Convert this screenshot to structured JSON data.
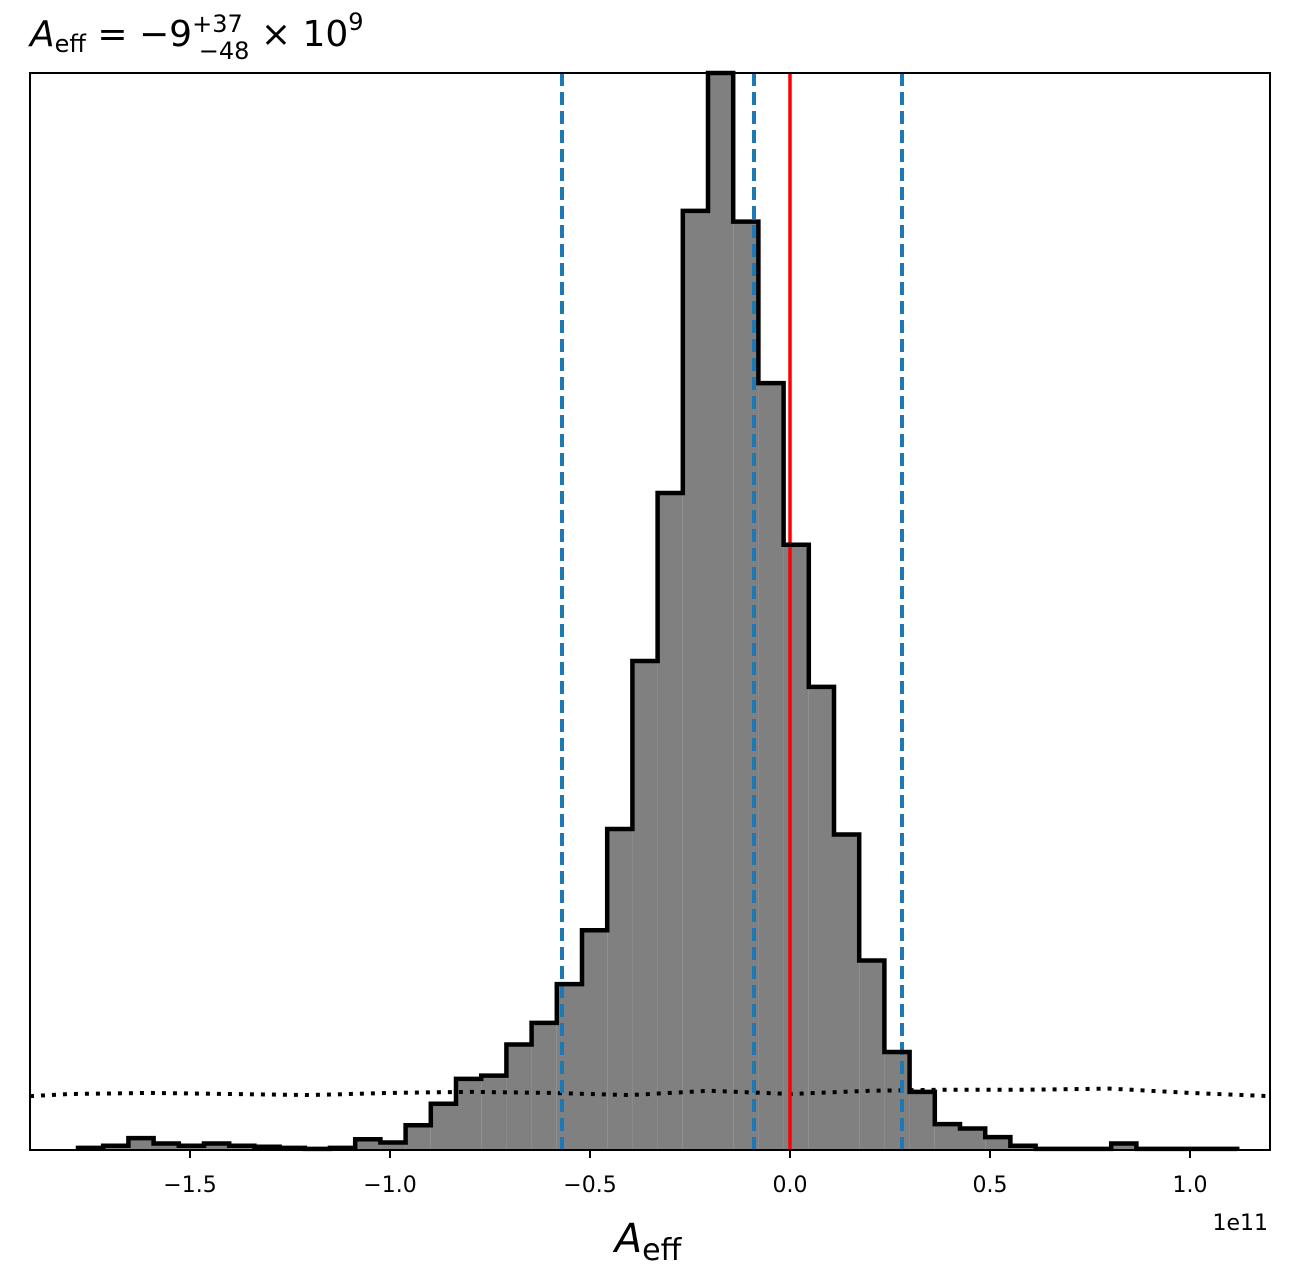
{
  "chart_data": {
    "type": "bar",
    "subtype": "histogram",
    "title": {
      "var_main": "A",
      "var_sub": "eff",
      "equals": " = −9",
      "sup": "+37",
      "sub": "−48",
      "times": " × 10",
      "exp": "9"
    },
    "xlabel": {
      "main": "A",
      "sub": "eff"
    },
    "x_offset_label": "1e11",
    "xlim": [
      -1.9,
      1.2
    ],
    "ylim": [
      0,
      1.0
    ],
    "ytick_labels_shown": false,
    "x_ticks": [
      {
        "value": -1.5,
        "label": "−1.5"
      },
      {
        "value": -1.0,
        "label": "−1.0"
      },
      {
        "value": -0.5,
        "label": "−0.5"
      },
      {
        "value": 0.0,
        "label": "0.0"
      },
      {
        "value": 0.5,
        "label": "0.5"
      },
      {
        "value": 1.0,
        "label": "1.0"
      }
    ],
    "bin_edges": [
      -1.78,
      -1.717,
      -1.654,
      -1.591,
      -1.528,
      -1.465,
      -1.402,
      -1.339,
      -1.276,
      -1.213,
      -1.15,
      -1.087,
      -1.024,
      -0.961,
      -0.898,
      -0.835,
      -0.772,
      -0.709,
      -0.646,
      -0.583,
      -0.52,
      -0.457,
      -0.394,
      -0.331,
      -0.268,
      -0.205,
      -0.142,
      -0.079,
      -0.016,
      0.047,
      0.11,
      0.173,
      0.236,
      0.299,
      0.362,
      0.425,
      0.488,
      0.551,
      0.614,
      0.677,
      0.74,
      0.803,
      0.866,
      0.929,
      0.992,
      1.055,
      1.118
    ],
    "bin_values": [
      0.002,
      0.004,
      0.011,
      0.006,
      0.004,
      0.006,
      0.004,
      0.003,
      0.002,
      0.001,
      0.002,
      0.01,
      0.007,
      0.023,
      0.043,
      0.066,
      0.069,
      0.098,
      0.118,
      0.154,
      0.204,
      0.298,
      0.454,
      0.61,
      0.872,
      1.0,
      0.862,
      0.712,
      0.562,
      0.43,
      0.293,
      0.176,
      0.091,
      0.054,
      0.024,
      0.02,
      0.012,
      0.004,
      0.001,
      0.001,
      0.001,
      0.006,
      0.001,
      0.001,
      0.001,
      0.001
    ],
    "bar_fill": "#808080",
    "bar_edge": "#000000",
    "prior_line": {
      "style": "dotted",
      "color": "#000000",
      "x": [
        -1.9,
        -1.8,
        -1.6,
        -1.4,
        -1.2,
        -1.0,
        -0.8,
        -0.6,
        -0.4,
        -0.2,
        0.0,
        0.2,
        0.4,
        0.6,
        0.8,
        1.0,
        1.2
      ],
      "y": [
        0.05,
        0.052,
        0.053,
        0.052,
        0.051,
        0.053,
        0.054,
        0.053,
        0.051,
        0.055,
        0.052,
        0.055,
        0.056,
        0.056,
        0.057,
        0.053,
        0.05
      ]
    },
    "quantile_lines": {
      "color": "#1f77b4",
      "style": "dashed",
      "values": [
        -0.57,
        -0.09,
        0.28
      ]
    },
    "true_value_line": {
      "color": "#ff0000",
      "style": "solid",
      "value": 0.0
    }
  }
}
